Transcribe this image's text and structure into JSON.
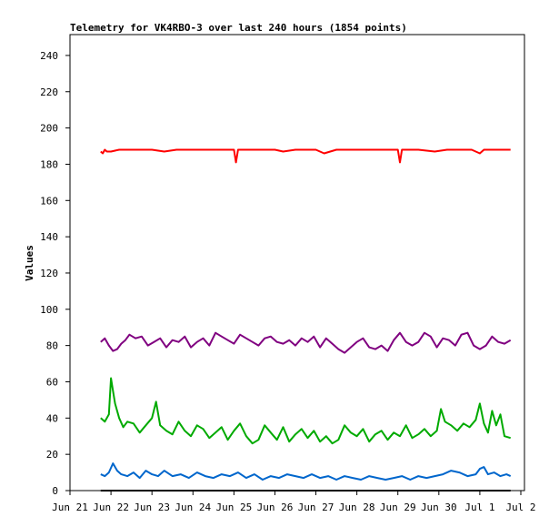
{
  "chart_data": {
    "type": "line",
    "title": "Telemetry for VK4RBO-3 over last 240 hours (1854 points)",
    "xlabel": "",
    "ylabel": "Values",
    "ylim": [
      0,
      250
    ],
    "yticks": [
      0,
      20,
      40,
      60,
      80,
      100,
      120,
      140,
      160,
      180,
      200,
      220,
      240
    ],
    "xlim": [
      0,
      11
    ],
    "xticks": [
      {
        "x": 0,
        "label": "Jun 21"
      },
      {
        "x": 1,
        "label": "Jun 22"
      },
      {
        "x": 2,
        "label": "Jun 23"
      },
      {
        "x": 3,
        "label": "Jun 24"
      },
      {
        "x": 4,
        "label": "Jun 25"
      },
      {
        "x": 5,
        "label": "Jun 26"
      },
      {
        "x": 6,
        "label": "Jun 27"
      },
      {
        "x": 7,
        "label": "Jun 28"
      },
      {
        "x": 8,
        "label": "Jun 29"
      },
      {
        "x": 9,
        "label": "Jun 30"
      },
      {
        "x": 10,
        "label": "Jul 1"
      },
      {
        "x": 11,
        "label": "Jul 2"
      }
    ],
    "grid": false,
    "series": [
      {
        "color": "#ff0000",
        "x": [
          0.75,
          0.8,
          0.85,
          0.9,
          1.0,
          1.2,
          1.5,
          1.7,
          2.0,
          2.3,
          2.6,
          3.0,
          3.4,
          3.7,
          4.0,
          4.05,
          4.1,
          4.3,
          4.7,
          5.0,
          5.2,
          5.5,
          6.0,
          6.2,
          6.5,
          6.8,
          7.0,
          7.5,
          7.8,
          8.0,
          8.05,
          8.1,
          8.5,
          8.9,
          9.2,
          9.5,
          9.8,
          10.0,
          10.1,
          10.3,
          10.5,
          10.75
        ],
        "y": [
          187,
          186,
          188,
          187,
          187,
          188,
          188,
          188,
          188,
          187,
          188,
          188,
          188,
          188,
          188,
          181,
          188,
          188,
          188,
          188,
          187,
          188,
          188,
          186,
          188,
          188,
          188,
          188,
          188,
          188,
          181,
          188,
          188,
          187,
          188,
          188,
          188,
          186,
          188,
          188,
          188,
          188
        ]
      },
      {
        "color": "#800080",
        "x": [
          0.75,
          0.85,
          0.95,
          1.05,
          1.15,
          1.25,
          1.35,
          1.45,
          1.6,
          1.75,
          1.9,
          2.05,
          2.2,
          2.35,
          2.5,
          2.65,
          2.8,
          2.95,
          3.1,
          3.25,
          3.4,
          3.55,
          3.7,
          3.85,
          4.0,
          4.15,
          4.3,
          4.45,
          4.6,
          4.75,
          4.9,
          5.05,
          5.2,
          5.35,
          5.5,
          5.65,
          5.8,
          5.95,
          6.1,
          6.25,
          6.4,
          6.55,
          6.7,
          6.85,
          7.0,
          7.15,
          7.3,
          7.45,
          7.6,
          7.75,
          7.9,
          8.05,
          8.2,
          8.35,
          8.5,
          8.65,
          8.8,
          8.95,
          9.1,
          9.25,
          9.4,
          9.55,
          9.7,
          9.85,
          10.0,
          10.15,
          10.3,
          10.45,
          10.6,
          10.75
        ],
        "y": [
          82,
          84,
          80,
          77,
          78,
          81,
          83,
          86,
          84,
          85,
          80,
          82,
          84,
          79,
          83,
          82,
          85,
          79,
          82,
          84,
          80,
          87,
          85,
          83,
          81,
          86,
          84,
          82,
          80,
          84,
          85,
          82,
          81,
          83,
          80,
          84,
          82,
          85,
          79,
          84,
          81,
          78,
          76,
          79,
          82,
          84,
          79,
          78,
          80,
          77,
          83,
          87,
          82,
          80,
          82,
          87,
          85,
          79,
          84,
          83,
          80,
          86,
          87,
          80,
          78,
          80,
          85,
          82,
          81,
          83
        ]
      },
      {
        "color": "#00aa00",
        "x": [
          0.75,
          0.85,
          0.95,
          1.0,
          1.05,
          1.1,
          1.2,
          1.3,
          1.4,
          1.55,
          1.7,
          1.85,
          2.0,
          2.1,
          2.2,
          2.35,
          2.5,
          2.65,
          2.8,
          2.95,
          3.1,
          3.25,
          3.4,
          3.55,
          3.7,
          3.85,
          4.0,
          4.15,
          4.3,
          4.45,
          4.6,
          4.75,
          4.9,
          5.05,
          5.2,
          5.35,
          5.5,
          5.65,
          5.8,
          5.95,
          6.1,
          6.25,
          6.4,
          6.55,
          6.7,
          6.85,
          7.0,
          7.15,
          7.3,
          7.45,
          7.6,
          7.75,
          7.9,
          8.05,
          8.2,
          8.35,
          8.5,
          8.65,
          8.8,
          8.95,
          9.05,
          9.15,
          9.3,
          9.45,
          9.6,
          9.75,
          9.9,
          10.0,
          10.1,
          10.2,
          10.3,
          10.4,
          10.5,
          10.6,
          10.75
        ],
        "y": [
          40,
          38,
          42,
          62,
          55,
          48,
          40,
          35,
          38,
          37,
          32,
          36,
          40,
          49,
          36,
          33,
          31,
          38,
          33,
          30,
          36,
          34,
          29,
          32,
          35,
          28,
          33,
          37,
          30,
          26,
          28,
          36,
          32,
          28,
          35,
          27,
          31,
          34,
          29,
          33,
          27,
          30,
          26,
          28,
          36,
          32,
          30,
          34,
          27,
          31,
          33,
          28,
          32,
          30,
          36,
          29,
          31,
          34,
          30,
          33,
          45,
          38,
          36,
          33,
          37,
          35,
          39,
          48,
          37,
          32,
          44,
          36,
          42,
          30,
          29
        ]
      },
      {
        "color": "#0066cc",
        "x": [
          0.75,
          0.85,
          0.95,
          1.05,
          1.15,
          1.25,
          1.4,
          1.55,
          1.7,
          1.85,
          2.0,
          2.15,
          2.3,
          2.5,
          2.7,
          2.9,
          3.1,
          3.3,
          3.5,
          3.7,
          3.9,
          4.1,
          4.3,
          4.5,
          4.7,
          4.9,
          5.1,
          5.3,
          5.5,
          5.7,
          5.9,
          6.1,
          6.3,
          6.5,
          6.7,
          6.9,
          7.1,
          7.3,
          7.5,
          7.7,
          7.9,
          8.1,
          8.3,
          8.5,
          8.7,
          8.9,
          9.1,
          9.3,
          9.5,
          9.7,
          9.9,
          10.0,
          10.1,
          10.2,
          10.35,
          10.5,
          10.65,
          10.75
        ],
        "y": [
          9,
          8,
          10,
          15,
          11,
          9,
          8,
          10,
          7,
          11,
          9,
          8,
          11,
          8,
          9,
          7,
          10,
          8,
          7,
          9,
          8,
          10,
          7,
          9,
          6,
          8,
          7,
          9,
          8,
          7,
          9,
          7,
          8,
          6,
          8,
          7,
          6,
          8,
          7,
          6,
          7,
          8,
          6,
          8,
          7,
          8,
          9,
          11,
          10,
          8,
          9,
          12,
          13,
          9,
          10,
          8,
          9,
          8
        ]
      },
      {
        "color": "#000000",
        "x": [
          0.75,
          10.75
        ],
        "y": [
          0,
          0
        ]
      }
    ]
  }
}
